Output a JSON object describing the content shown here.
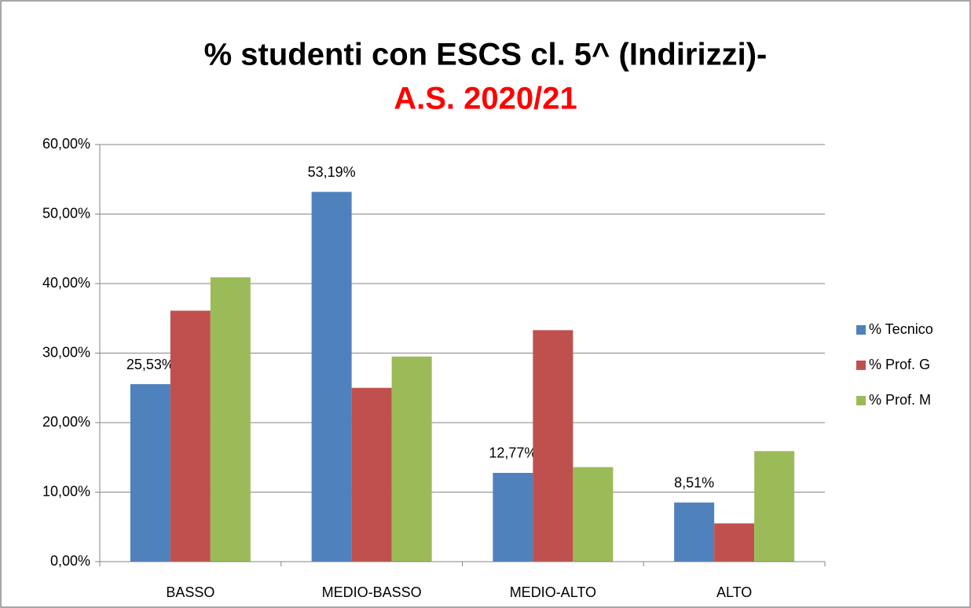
{
  "chart_data": {
    "type": "bar",
    "title": "% studenti con ESCS cl. 5^ (Indirizzi)-",
    "subtitle": "A.S. 2020/21",
    "subtitle_color": "#ff0000",
    "categories": [
      "BASSO",
      "MEDIO-BASSO",
      "MEDIO-ALTO",
      "ALTO"
    ],
    "series": [
      {
        "name": "% Tecnico",
        "color": "#4f81bd",
        "values": [
          25.53,
          53.19,
          12.77,
          8.51
        ],
        "value_labels": [
          "25,53%",
          "53,19%",
          "12,77%",
          "8,51%"
        ]
      },
      {
        "name": "% Prof. G",
        "color": "#c0504d",
        "values": [
          36.1,
          25.0,
          33.3,
          5.5
        ]
      },
      {
        "name": "% Prof. M",
        "color": "#9bbb59",
        "values": [
          40.9,
          29.5,
          13.6,
          15.9
        ]
      }
    ],
    "ylim": [
      0,
      60
    ],
    "yticks": [
      {
        "value": 0,
        "label": "0,00%"
      },
      {
        "value": 10,
        "label": "10,00%"
      },
      {
        "value": 20,
        "label": "20,00%"
      },
      {
        "value": 30,
        "label": "30,00%"
      },
      {
        "value": 40,
        "label": "40,00%"
      },
      {
        "value": 50,
        "label": "50,00%"
      },
      {
        "value": 60,
        "label": "60,00%"
      }
    ],
    "grid": true,
    "legend": "right"
  }
}
